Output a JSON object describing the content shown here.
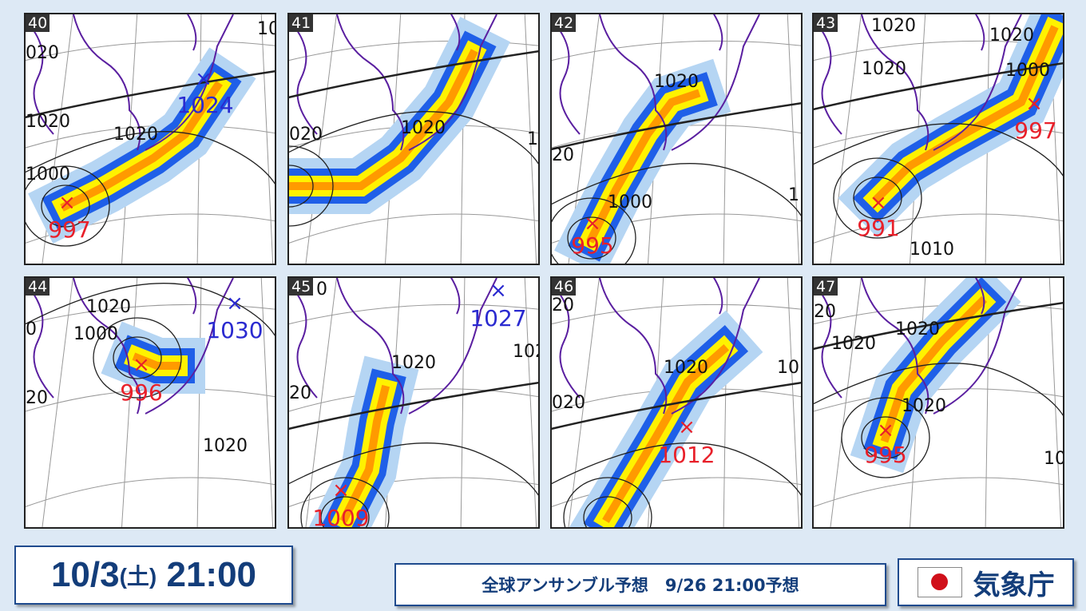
{
  "panels": [
    {
      "id": "40",
      "isobar_labels": [
        "020",
        "1020",
        "1020",
        "1000",
        "10"
      ],
      "centers": [
        {
          "type": "low",
          "value": "997"
        },
        {
          "type": "high",
          "value": "1024"
        }
      ]
    },
    {
      "id": "41",
      "isobar_labels": [
        "020",
        "1020",
        "1"
      ],
      "centers": []
    },
    {
      "id": "42",
      "isobar_labels": [
        "1020",
        "20",
        "1000",
        "1"
      ],
      "centers": [
        {
          "type": "low",
          "value": "995"
        }
      ]
    },
    {
      "id": "43",
      "isobar_labels": [
        "1020",
        "1020",
        "1020",
        "1000",
        "1010"
      ],
      "centers": [
        {
          "type": "low",
          "value": "991"
        },
        {
          "type": "low",
          "value": "997"
        }
      ]
    },
    {
      "id": "44",
      "isobar_labels": [
        "1020",
        "20",
        "1000",
        "1020",
        "0"
      ],
      "centers": [
        {
          "type": "low",
          "value": "996"
        },
        {
          "type": "high",
          "value": "1030"
        }
      ]
    },
    {
      "id": "45",
      "isobar_labels": [
        "0",
        "1020",
        "20",
        "102"
      ],
      "centers": [
        {
          "type": "high",
          "value": "1027"
        },
        {
          "type": "low",
          "value": "1009"
        }
      ]
    },
    {
      "id": "46",
      "isobar_labels": [
        "20",
        "1020",
        "020",
        "10"
      ],
      "centers": [
        {
          "type": "low",
          "value": "1012"
        }
      ]
    },
    {
      "id": "47",
      "isobar_labels": [
        "20",
        "1020",
        "1020",
        "1020",
        "102"
      ],
      "centers": [
        {
          "type": "low",
          "value": "995"
        }
      ]
    }
  ],
  "center_marker": "×",
  "footer": {
    "date": "10/3",
    "weekday": "(土)",
    "time": "21:00",
    "info": "全球アンサンブル予想　9/26 21:00予想",
    "agency": "気象庁",
    "flag_icon": "japan-flag"
  },
  "colors": {
    "low": "#e8202a",
    "high": "#2a2ad0",
    "precip_light": "#b5d5f3",
    "precip_blue": "#1f5fe8",
    "precip_yellow": "#fff200",
    "precip_orange": "#ff9a00",
    "coast": "#5a1fa0"
  }
}
